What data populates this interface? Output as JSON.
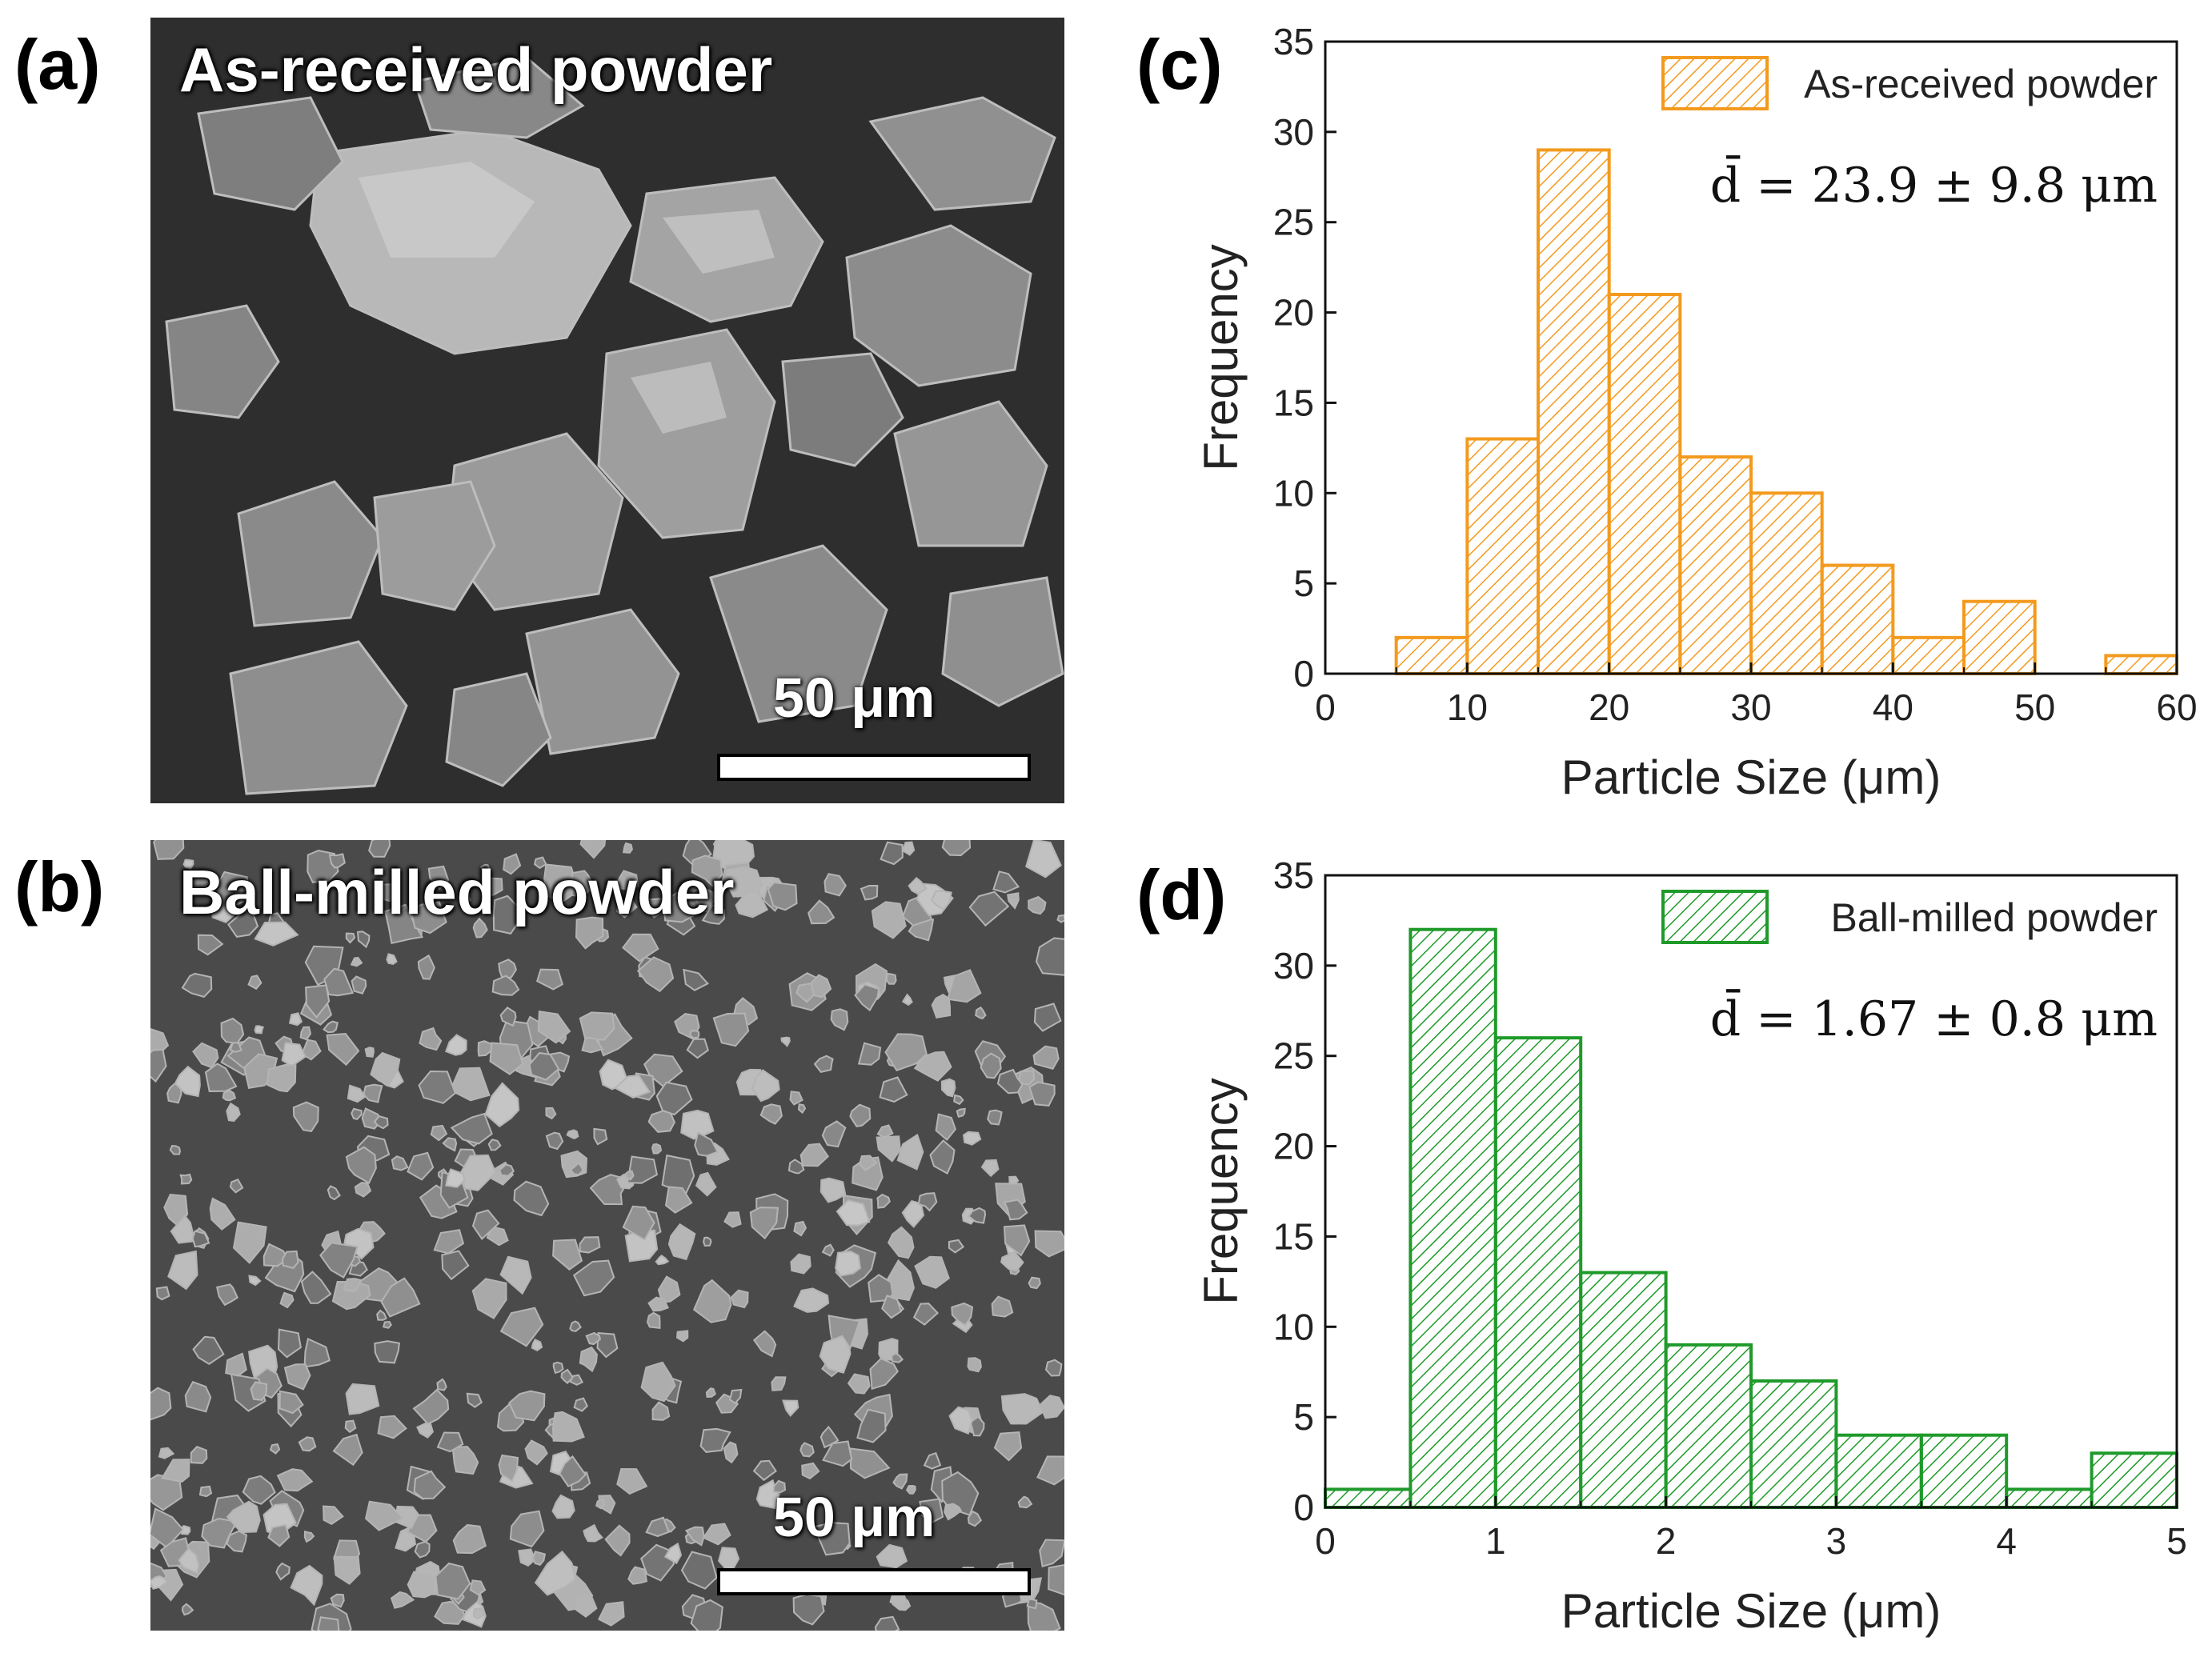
{
  "panels": {
    "a": {
      "label": "(a)",
      "title": "As-received powder",
      "scale_label": "50 μm"
    },
    "b": {
      "label": "(b)",
      "title": "Ball-milled powder",
      "scale_label": "50 μm"
    },
    "c": {
      "label": "(c)"
    },
    "d": {
      "label": "(d)"
    }
  },
  "chart_data": [
    {
      "type": "bar",
      "panel": "c",
      "bin_edges": [
        5,
        10,
        15,
        20,
        25,
        30,
        35,
        40,
        45,
        50,
        55,
        60
      ],
      "values": [
        2,
        13,
        29,
        21,
        12,
        10,
        6,
        2,
        4,
        0,
        1
      ],
      "xlim": [
        0,
        60
      ],
      "ylim": [
        0,
        35
      ],
      "xticks": [
        0,
        10,
        20,
        30,
        40,
        50,
        60
      ],
      "yticks": [
        0,
        5,
        10,
        15,
        20,
        25,
        30,
        35
      ],
      "xlabel": "Particle Size (μm)",
      "ylabel": "Frequency",
      "legend": "As-received powder",
      "legend_position": "top-right",
      "annotation": "d̄ = 23.9  ± 9.8 μm",
      "color": "#f39a1e",
      "hatch": "diagonal"
    },
    {
      "type": "bar",
      "panel": "d",
      "bin_edges": [
        0,
        0.5,
        1,
        1.5,
        2,
        2.5,
        3,
        3.5,
        4,
        4.5,
        5
      ],
      "values": [
        1,
        32,
        26,
        13,
        9,
        7,
        4,
        4,
        1,
        3
      ],
      "xlim": [
        0,
        5
      ],
      "ylim": [
        0,
        35
      ],
      "xticks": [
        0,
        1,
        2,
        3,
        4,
        5
      ],
      "yticks": [
        0,
        5,
        10,
        15,
        20,
        25,
        30,
        35
      ],
      "xlabel": "Particle Size (μm)",
      "ylabel": "Frequency",
      "legend": "Ball-milled powder",
      "legend_position": "top-right",
      "annotation": "d̄ = 1.67  ± 0.8 μm",
      "color": "#1f9a2a",
      "hatch": "diagonal"
    }
  ]
}
